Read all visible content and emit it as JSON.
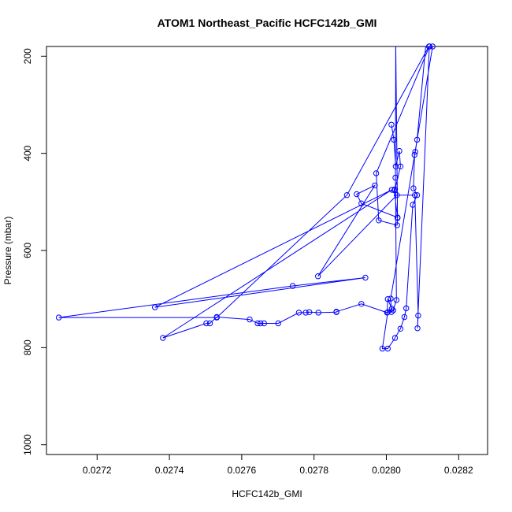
{
  "chart_data": {
    "type": "line",
    "title": "ATOM1 Northeast_Pacific HCFC142b_GMI",
    "xlabel": "HCFC142b_GMI",
    "ylabel": "Pressure (mbar)",
    "xlim": [
      0.02706,
      0.02828
    ],
    "ylim": [
      1020,
      180
    ],
    "y_reversed": true,
    "x_ticks": [
      0.0272,
      0.0274,
      0.0276,
      0.0278,
      0.028,
      0.0282
    ],
    "x_tick_labels": [
      "0.0272",
      "0.0274",
      "0.0276",
      "0.0278",
      "0.0280",
      "0.0282"
    ],
    "y_ticks": [
      200,
      400,
      600,
      800,
      1000
    ],
    "y_tick_labels": [
      "200",
      "400",
      "600",
      "800",
      "1000"
    ],
    "grid": false,
    "color": "#0000ff",
    "series": [
      {
        "points": [
          [
            0.028014,
            341
          ],
          [
            0.028021,
            372
          ],
          [
            0.028026,
            427
          ],
          [
            0.028036,
            395
          ],
          [
            0.028039,
            427
          ],
          [
            0.028024,
            474
          ],
          [
            0.028022,
            476
          ],
          [
            0.028031,
            533
          ],
          [
            0.02803,
            548
          ],
          [
            0.027979,
            538
          ],
          [
            0.027972,
            441
          ],
          [
            0.028119,
            180
          ],
          [
            0.028135,
            175
          ],
          [
            0.028118,
            180
          ],
          [
            0.028109,
            178
          ],
          [
            0.028085,
            372
          ],
          [
            0.02808,
            397
          ],
          [
            0.028078,
            403
          ],
          [
            0.028075,
            472
          ],
          [
            0.028085,
            486
          ],
          [
            0.028073,
            506
          ],
          [
            0.028055,
            719
          ],
          [
            0.02805,
            737
          ],
          [
            0.028039,
            761
          ],
          [
            0.028024,
            780
          ],
          [
            0.028004,
            802
          ],
          [
            0.027989,
            802
          ],
          [
            0.028004,
            727
          ],
          [
            0.028015,
            720
          ],
          [
            0.028004,
            700
          ],
          [
            0.028002,
            728
          ],
          [
            0.027931,
            710
          ],
          [
            0.027862,
            726
          ],
          [
            0.027862,
            727
          ],
          [
            0.027812,
            728
          ],
          [
            0.027787,
            727
          ],
          [
            0.027777,
            728
          ],
          [
            0.027758,
            728
          ],
          [
            0.027701,
            750
          ],
          [
            0.027662,
            750
          ],
          [
            0.027652,
            750
          ],
          [
            0.027644,
            750
          ],
          [
            0.027622,
            742
          ],
          [
            0.027531,
            737
          ],
          [
            0.027512,
            750
          ],
          [
            0.027502,
            750
          ],
          [
            0.027382,
            780
          ],
          [
            0.028015,
            475
          ],
          [
            0.02736,
            717
          ],
          [
            0.027942,
            656
          ],
          [
            0.027741,
            673
          ],
          [
            0.027094,
            738
          ],
          [
            0.027531,
            738
          ],
          [
            0.027891,
            486
          ],
          [
            0.028119,
            178
          ],
          [
            0.028086,
            760
          ],
          [
            0.028088,
            734
          ],
          [
            0.028079,
            486
          ],
          [
            0.028029,
            486
          ],
          [
            0.027811,
            653
          ],
          [
            0.027968,
            466
          ],
          [
            0.027918,
            484
          ],
          [
            0.027931,
            503
          ],
          [
            0.028031,
            532
          ],
          [
            0.028026,
            174
          ],
          [
            0.028025,
            450
          ],
          [
            0.028028,
            702
          ],
          [
            0.028019,
            723
          ],
          [
            0.028014,
            727
          ],
          [
            0.028012,
            699
          ],
          [
            0.028128,
            180
          ],
          [
            0.028138,
            175
          ]
        ]
      }
    ]
  }
}
